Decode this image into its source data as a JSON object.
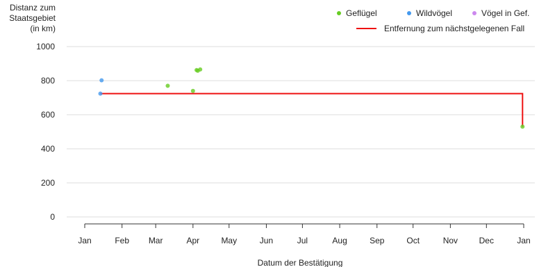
{
  "chart_data": {
    "type": "scatter",
    "ylabel_lines": [
      "Distanz zum",
      "Staatsgebiet",
      "(in km)"
    ],
    "xlabel": "Datum der Bestätigung",
    "ylim": [
      0,
      1000
    ],
    "yticks": [
      0,
      200,
      400,
      600,
      800,
      1000
    ],
    "xlim": [
      "2021-01-01",
      "2022-01-01"
    ],
    "xticks": [
      {
        "date": "2021-01-01",
        "label": "Jan"
      },
      {
        "date": "2021-02-01",
        "label": "Feb"
      },
      {
        "date": "2021-03-01",
        "label": "Mar"
      },
      {
        "date": "2021-04-01",
        "label": "Apr"
      },
      {
        "date": "2021-05-01",
        "label": "May"
      },
      {
        "date": "2021-06-01",
        "label": "Jun"
      },
      {
        "date": "2021-07-01",
        "label": "Jul"
      },
      {
        "date": "2021-08-01",
        "label": "Aug"
      },
      {
        "date": "2021-09-01",
        "label": "Sep"
      },
      {
        "date": "2021-10-01",
        "label": "Oct"
      },
      {
        "date": "2021-11-01",
        "label": "Nov"
      },
      {
        "date": "2021-12-01",
        "label": "Dec"
      },
      {
        "date": "2022-01-01",
        "label": "Jan"
      }
    ],
    "grid": true,
    "legend_position": "top-right",
    "series": [
      {
        "name": "Geflügel",
        "color": "#66cc22",
        "points": [
          {
            "x": "2021-03-11",
            "y": 770
          },
          {
            "x": "2021-04-01",
            "y": 740
          },
          {
            "x": "2021-04-04",
            "y": 862
          },
          {
            "x": "2021-04-05",
            "y": 858
          },
          {
            "x": "2021-04-07",
            "y": 866
          },
          {
            "x": "2021-12-31",
            "y": 530
          }
        ]
      },
      {
        "name": "Wildvögel",
        "color": "#4499ee",
        "points": [
          {
            "x": "2021-01-15",
            "y": 802
          },
          {
            "x": "2021-01-14",
            "y": 724
          }
        ]
      },
      {
        "name": "Vögel in Gef.",
        "color": "#cc88ee",
        "points": []
      }
    ],
    "line": {
      "name": "Entfernung zum nächstgelegenen Fall",
      "color": "#ee1111",
      "points": [
        {
          "x": "2021-01-14",
          "y": 724
        },
        {
          "x": "2021-12-31",
          "y": 724
        },
        {
          "x": "2021-12-31",
          "y": 530
        }
      ]
    }
  }
}
